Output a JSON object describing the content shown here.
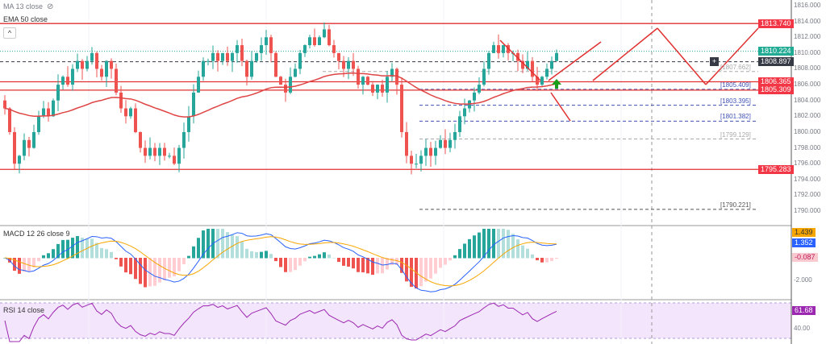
{
  "legend": {
    "ma": "MA 13 close",
    "ema": "EMA 50 close",
    "macd": "MACD 12 26 close 9",
    "rsi": "RSI 14 close",
    "collapse": "^"
  },
  "price_axis": [
    "1816.000",
    "1814.000",
    "1812.000",
    "1810.000",
    "1808.000",
    "1806.000",
    "1804.000",
    "1802.000",
    "1800.000",
    "1798.000",
    "1796.000",
    "1794.000",
    "1792.000",
    "1790.000"
  ],
  "price_tags": [
    {
      "text": "1813.740",
      "value": 1813.74,
      "color": "#f23645"
    },
    {
      "text": "1810.224",
      "value": 1810.224,
      "color": "#22ab94"
    },
    {
      "text": "1808.897",
      "value": 1808.897,
      "color": "#363a45"
    },
    {
      "text": "1806.365",
      "value": 1806.365,
      "color": "#f23645"
    },
    {
      "text": "1805.309",
      "value": 1805.309,
      "color": "#f23645"
    },
    {
      "text": "1795.283",
      "value": 1795.283,
      "color": "#f23645"
    }
  ],
  "drawn_levels": [
    {
      "text": "1807.662",
      "value": 1807.662,
      "color": "#aaaaaa"
    },
    {
      "text": "1805.409",
      "value": 1805.409,
      "color": "#3f51b5"
    },
    {
      "text": "1803.395",
      "value": 1803.395,
      "color": "#3f51b5"
    },
    {
      "text": "1801.382",
      "value": 1801.382,
      "color": "#3f51b5"
    },
    {
      "text": "1799.129",
      "value": 1799.129,
      "color": "#aaaaaa"
    },
    {
      "text": "1790.221",
      "value": 1790.221,
      "color": "#555555"
    }
  ],
  "macd_axis": {
    "tags": [
      {
        "text": "1.439",
        "color": "#f7a600",
        "fg": "#333"
      },
      {
        "text": "1.352",
        "color": "#2962ff",
        "fg": "#fff"
      },
      {
        "text": "-0.087",
        "color": "#f8c9cf",
        "fg": "#c2185b"
      }
    ],
    "tick": "-2.000"
  },
  "rsi_axis": {
    "tag": "61.68",
    "tag_color": "#9c27b0",
    "tick": "40.00"
  },
  "chart_data": {
    "type": "candlestick",
    "closes": [
      1803,
      1800,
      1796,
      1797,
      1799,
      1798,
      1800,
      1802,
      1803,
      1802,
      1804,
      1806,
      1807,
      1806,
      1808,
      1809,
      1808,
      1809,
      1810,
      1808,
      1807,
      1809,
      1808,
      1805,
      1803,
      1802,
      1803,
      1800,
      1798,
      1797,
      1798,
      1797,
      1798,
      1797,
      1797,
      1796,
      1798,
      1800,
      1802,
      1805,
      1807,
      1809,
      1809,
      1810,
      1809,
      1810,
      1809,
      1810,
      1811,
      1809,
      1807,
      1809,
      1810,
      1811,
      1812,
      1810,
      1807,
      1806,
      1805,
      1807,
      1808,
      1810,
      1811,
      1812,
      1811,
      1812,
      1813,
      1811,
      1810,
      1809,
      1808,
      1809,
      1808,
      1806,
      1807,
      1806,
      1805,
      1806,
      1805,
      1807,
      1808,
      1806,
      1800,
      1797,
      1796,
      1796,
      1797,
      1798,
      1797,
      1798,
      1799,
      1798,
      1799,
      1800,
      1802,
      1803,
      1804,
      1805,
      1806,
      1808,
      1810,
      1811,
      1810,
      1811,
      1810,
      1810,
      1809,
      1808,
      1809,
      1807,
      1806,
      1807,
      1808,
      1809,
      1810
    ],
    "ylim": [
      1789,
      1816.7
    ]
  }
}
